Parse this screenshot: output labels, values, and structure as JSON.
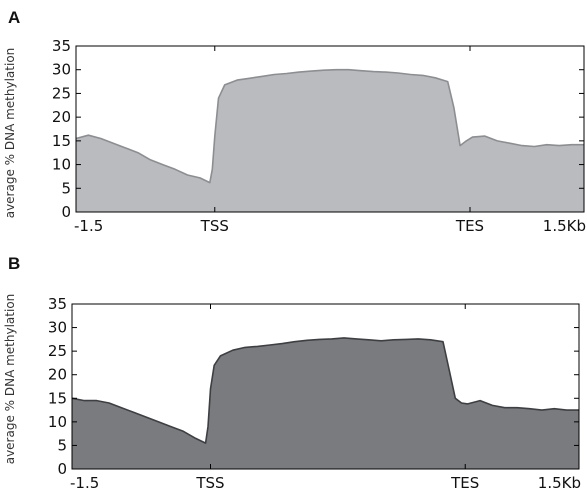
{
  "chart_data": [
    {
      "panel_label": "A",
      "type": "area",
      "ylabel": "average % DNA methylation",
      "ylim": [
        0,
        35
      ],
      "yticks": [
        "0",
        "5",
        "10",
        "15",
        "20",
        "25",
        "30",
        "35"
      ],
      "xticks": [
        "-1.5",
        "TSS",
        "TES",
        "1.5Kb"
      ],
      "fill_color": "#b9bbbe",
      "line_color": "#8c8e91",
      "series": [
        {
          "x": [
            0,
            10,
            20,
            30,
            40,
            50,
            60,
            70,
            80,
            90,
            100,
            108,
            110,
            112,
            115,
            120,
            130,
            140,
            150,
            160,
            170,
            180,
            190,
            200,
            210,
            220,
            230,
            240,
            250,
            260,
            270,
            280,
            290,
            300,
            305,
            310,
            315,
            320,
            330,
            340,
            350,
            360,
            370,
            380,
            390,
            400,
            410
          ],
          "values": [
            15.5,
            16.2,
            15.5,
            14.5,
            13.5,
            12.5,
            11.0,
            10.0,
            9.0,
            7.8,
            7.2,
            6.2,
            9.0,
            16.0,
            24.0,
            26.8,
            27.8,
            28.2,
            28.6,
            29.0,
            29.2,
            29.5,
            29.7,
            29.9,
            30.0,
            30.0,
            29.8,
            29.6,
            29.5,
            29.3,
            29.0,
            28.8,
            28.3,
            27.5,
            22.0,
            14.0,
            15.0,
            15.8,
            16.0,
            15.0,
            14.5,
            14.0,
            13.8,
            14.2,
            14.0,
            14.2,
            14.2
          ]
        }
      ]
    },
    {
      "panel_label": "B",
      "type": "area",
      "ylabel": "average % DNA methylation",
      "ylim": [
        0,
        35
      ],
      "yticks": [
        "0",
        "5",
        "10",
        "15",
        "20",
        "25",
        "30",
        "35"
      ],
      "xticks": [
        "-1.5",
        "TSS",
        "TES",
        "1.5Kb"
      ],
      "fill_color": "#7a7b7e",
      "line_color": "#3e3f42",
      "series": [
        {
          "x": [
            0,
            10,
            20,
            30,
            40,
            50,
            60,
            70,
            80,
            90,
            100,
            108,
            110,
            112,
            115,
            120,
            130,
            140,
            150,
            160,
            170,
            180,
            190,
            200,
            210,
            220,
            230,
            240,
            250,
            260,
            270,
            280,
            290,
            300,
            305,
            310,
            315,
            320,
            330,
            340,
            350,
            360,
            370,
            380,
            390,
            400,
            410
          ],
          "values": [
            15.0,
            14.5,
            14.5,
            14.0,
            13.0,
            12.0,
            11.0,
            10.0,
            9.0,
            8.0,
            6.5,
            5.5,
            9.0,
            17.0,
            22.0,
            24.0,
            25.2,
            25.8,
            26.0,
            26.3,
            26.6,
            27.0,
            27.3,
            27.5,
            27.6,
            27.8,
            27.6,
            27.4,
            27.2,
            27.4,
            27.5,
            27.6,
            27.4,
            27.0,
            21.0,
            15.0,
            14.0,
            13.8,
            14.5,
            13.5,
            13.0,
            13.0,
            12.8,
            12.5,
            12.8,
            12.5,
            12.5
          ]
        }
      ]
    }
  ]
}
